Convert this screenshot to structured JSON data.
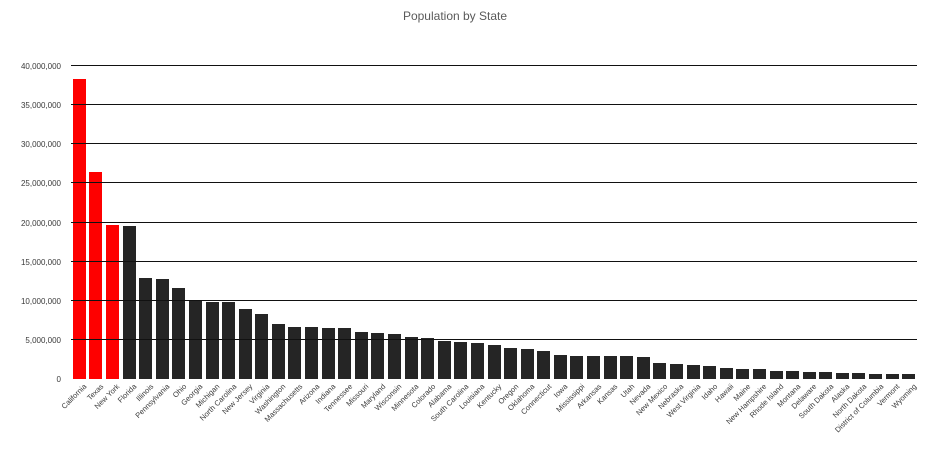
{
  "chart_data": {
    "type": "bar",
    "title": "Population by State",
    "categories": [
      "California",
      "Texas",
      "New York",
      "Florida",
      "Illinois",
      "Pennsylvania",
      "Ohio",
      "Georgia",
      "Michigan",
      "North Carolina",
      "New Jersey",
      "Virginia",
      "Washington",
      "Massachusetts",
      "Arizona",
      "Indiana",
      "Tennessee",
      "Missouri",
      "Maryland",
      "Wisconsin",
      "Minnesota",
      "Colorado",
      "Alabama",
      "South Carolina",
      "Louisiana",
      "Kentucky",
      "Oregon",
      "Oklahoma",
      "Connecticut",
      "Iowa",
      "Mississippi",
      "Arkansas",
      "Kansas",
      "Utah",
      "Nevada",
      "New Mexico",
      "Nebraska",
      "West Virginia",
      "Idaho",
      "Hawaii",
      "Maine",
      "New Hampshire",
      "Rhode Island",
      "Montana",
      "Delaware",
      "South Dakota",
      "Alaska",
      "North Dakota",
      "District of Columbia",
      "Vermont",
      "Wyoming"
    ],
    "values": [
      38300000,
      26400000,
      19650000,
      19500000,
      12880000,
      12770000,
      11570000,
      9990000,
      9900000,
      9850000,
      8900000,
      8260000,
      6970000,
      6690000,
      6630000,
      6570000,
      6500000,
      6040000,
      5930000,
      5740000,
      5420000,
      5270000,
      4830000,
      4770000,
      4630000,
      4400000,
      3930000,
      3850000,
      3600000,
      3090000,
      2990000,
      2960000,
      2900000,
      2880000,
      2790000,
      2090000,
      1870000,
      1850000,
      1610000,
      1400000,
      1330000,
      1320000,
      1050000,
      1020000,
      930000,
      840000,
      740000,
      720000,
      650000,
      630000,
      580000
    ],
    "highlighted_categories": [
      "California",
      "Texas",
      "New York"
    ],
    "xlabel": "",
    "ylabel": "",
    "ylim": [
      0,
      40000000
    ],
    "ytick_interval": 5000000,
    "ytick_labels": [
      "0",
      "5,000,000",
      "10,000,000",
      "15,000,000",
      "20,000,000",
      "25,000,000",
      "30,000,000",
      "35,000,000",
      "40,000,000"
    ],
    "grid": "horizontal",
    "legend": "none",
    "colors": {
      "highlight_bar": "#fe0000",
      "default_bar": "#252525",
      "gridline": "#111111",
      "tick_label": "#3a3a3a",
      "title": "#5a5a5a",
      "background": "#ffffff"
    }
  }
}
